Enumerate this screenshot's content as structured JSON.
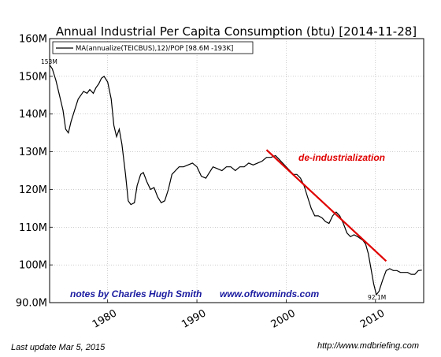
{
  "chart_data": {
    "type": "line",
    "title": "Annual Industrial Per Capita Consumption (btu)  [2014-11-28]",
    "legend": "MA(annualize(TEICBUS),12)/POP [98.6M -193K]",
    "legend_position": "top-left",
    "grid": true,
    "xlim": [
      1973.5,
      2015.4
    ],
    "ylim": [
      90,
      160
    ],
    "y_unit_suffix": "M",
    "yticks": [
      90,
      100,
      110,
      120,
      130,
      140,
      150,
      160
    ],
    "ytick_labels": [
      "90.0M",
      "100M",
      "110M",
      "120M",
      "130M",
      "140M",
      "150M",
      "160M"
    ],
    "xticks": [
      1980,
      1990,
      2000,
      2010
    ],
    "xtick_labels": [
      "1980",
      "1990",
      "2000",
      "2010"
    ],
    "series": [
      {
        "name": "MA(annualize(TEICBUS),12)/POP [98.6M -193K]",
        "color": "#000000",
        "x": [
          1973.5,
          1973.8,
          1974.2,
          1974.6,
          1975.0,
          1975.3,
          1975.6,
          1975.9,
          1976.3,
          1976.7,
          1977.0,
          1977.3,
          1977.7,
          1978.0,
          1978.4,
          1978.7,
          1979.0,
          1979.3,
          1979.6,
          1980.0,
          1980.4,
          1980.7,
          1981.0,
          1981.3,
          1981.6,
          1982.0,
          1982.3,
          1982.6,
          1983.0,
          1983.3,
          1983.7,
          1984.0,
          1984.4,
          1984.8,
          1985.2,
          1985.6,
          1986.0,
          1986.4,
          1986.8,
          1987.2,
          1987.6,
          1988.0,
          1988.5,
          1989.0,
          1989.5,
          1990.0,
          1990.5,
          1991.0,
          1991.4,
          1991.8,
          1992.3,
          1992.8,
          1993.3,
          1993.8,
          1994.3,
          1994.8,
          1995.3,
          1995.8,
          1996.3,
          1996.8,
          1997.3,
          1997.8,
          1998.3,
          1998.8,
          1999.2,
          1999.6,
          2000.0,
          2000.4,
          2000.8,
          2001.2,
          2001.6,
          2002.0,
          2002.4,
          2002.8,
          2003.2,
          2003.6,
          2004.0,
          2004.4,
          2004.8,
          2005.2,
          2005.6,
          2006.0,
          2006.4,
          2006.8,
          2007.2,
          2007.6,
          2008.0,
          2008.3,
          2008.6,
          2008.9,
          2009.2,
          2009.5,
          2009.8,
          2010.1,
          2010.4,
          2010.8,
          2011.2,
          2011.6,
          2012.0,
          2012.4,
          2012.8,
          2013.2,
          2013.6,
          2014.0,
          2014.4,
          2014.8,
          2015.2
        ],
        "y": [
          153,
          152,
          149,
          145,
          141,
          136,
          135,
          138,
          141,
          144,
          145,
          146,
          145.5,
          146.5,
          145.5,
          147,
          148,
          149.5,
          150,
          148.5,
          144,
          137,
          134,
          136,
          132,
          124,
          117,
          116,
          116.5,
          121,
          124,
          124.5,
          122,
          120,
          120.5,
          118,
          116.5,
          117,
          120,
          124,
          125,
          126,
          126,
          126.5,
          127,
          126,
          123.5,
          123,
          124.5,
          126,
          125.5,
          125,
          126,
          126,
          125,
          126,
          126,
          127,
          126.5,
          127,
          127.5,
          128.5,
          128.5,
          129,
          128,
          127,
          126,
          125,
          124,
          124,
          123,
          121,
          118,
          115,
          113,
          113,
          112.5,
          111.5,
          111,
          113,
          114,
          113,
          111,
          108.5,
          107.5,
          108,
          107.5,
          107,
          106.5,
          105.5,
          103,
          99,
          95,
          92.1,
          93,
          96,
          98.5,
          99,
          98.5,
          98.5,
          98,
          98,
          98,
          97.5,
          97.5,
          98.5,
          98.6
        ]
      }
    ],
    "trend_line": {
      "color": "#e00000",
      "x": [
        1997.8,
        2011.2
      ],
      "y": [
        130.5,
        101
      ]
    },
    "annotations": [
      {
        "text": "153M",
        "x": 1973.5,
        "y": 153
      },
      {
        "text": "92.1M",
        "x": 2009.0,
        "y": 92.1
      },
      {
        "text": "de-industrialization",
        "x": 2003.5,
        "y": 128
      }
    ]
  },
  "notes_text": "notes by Charles Hugh Smith",
  "site_text": "www.oftwominds.com",
  "footer": {
    "last_update": "Last update Mar  5, 2015",
    "url": "http://www.mdbriefing.com"
  }
}
